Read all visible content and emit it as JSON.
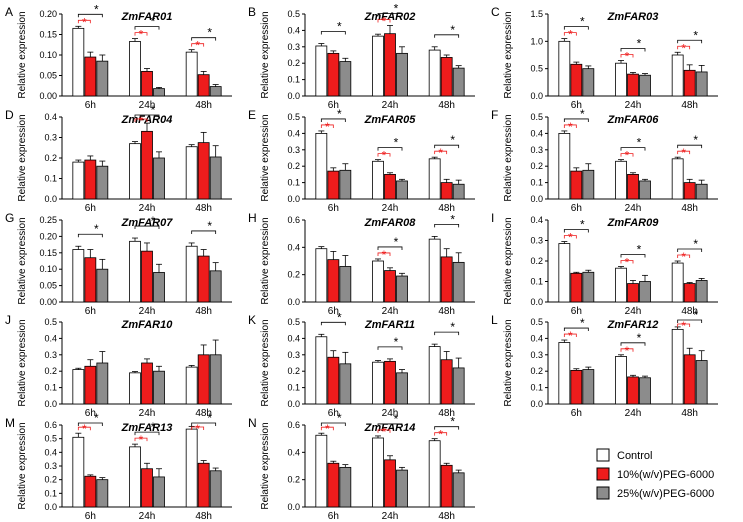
{
  "legend": {
    "items": [
      {
        "label": "Control",
        "color": "#ffffff"
      },
      {
        "label": "10%(w/v)PEG-6000",
        "color": "#ee1c1c"
      },
      {
        "label": "25%(w/v)PEG-6000",
        "color": "#8c8c8c"
      }
    ]
  },
  "chart_data": [
    {
      "type": "bar",
      "panel": "A",
      "title": "ZmFAR01",
      "ylabel": "Relative expression",
      "categories": [
        "6h",
        "24h",
        "48h"
      ],
      "ylim": [
        0,
        0.2
      ],
      "yticks": [
        "0.00",
        "0.05",
        "0.10",
        "0.15",
        "0.20"
      ],
      "series": [
        {
          "name": "Control",
          "values": [
            0.165,
            0.133,
            0.107
          ]
        },
        {
          "name": "10%(w/v)PEG-6000",
          "values": [
            0.095,
            0.06,
            0.052
          ]
        },
        {
          "name": "25%(w/v)PEG-6000",
          "values": [
            0.085,
            0.018,
            0.023
          ]
        }
      ],
      "errors": [
        [
          0.005,
          0.007,
          0.006
        ],
        [
          0.012,
          0.007,
          0.008
        ],
        [
          0.015,
          0.003,
          0.005
        ]
      ],
      "sig": [
        [
          "red",
          "black"
        ],
        [
          "red",
          "black"
        ],
        [
          "red",
          "black"
        ]
      ]
    },
    {
      "type": "bar",
      "panel": "B",
      "title": "ZmFAR02",
      "ylabel": "Relative expression",
      "categories": [
        "6h",
        "24h",
        "48h"
      ],
      "ylim": [
        0,
        0.5
      ],
      "yticks": [
        "0.0",
        "0.1",
        "0.2",
        "0.3",
        "0.4",
        "0.5"
      ],
      "series": [
        {
          "name": "Control",
          "values": [
            0.305,
            0.365,
            0.28
          ]
        },
        {
          "name": "10%(w/v)PEG-6000",
          "values": [
            0.26,
            0.38,
            0.235
          ]
        },
        {
          "name": "25%(w/v)PEG-6000",
          "values": [
            0.21,
            0.26,
            0.17
          ]
        }
      ],
      "errors": [
        [
          0.015,
          0.012,
          0.02
        ],
        [
          0.015,
          0.05,
          0.015
        ],
        [
          0.02,
          0.04,
          0.015
        ]
      ],
      "sig": [
        [
          null,
          "black"
        ],
        [
          "red",
          "black"
        ],
        [
          null,
          "black"
        ]
      ]
    },
    {
      "type": "bar",
      "panel": "C",
      "title": "ZmFAR03",
      "ylabel": "Relative expression",
      "categories": [
        "6h",
        "24h",
        "48h"
      ],
      "ylim": [
        0,
        1.5
      ],
      "yticks": [
        "0.0",
        "0.5",
        "1.0",
        "1.5"
      ],
      "series": [
        {
          "name": "Control",
          "values": [
            1.0,
            0.6,
            0.75
          ]
        },
        {
          "name": "10%(w/v)PEG-6000",
          "values": [
            0.58,
            0.4,
            0.47
          ]
        },
        {
          "name": "25%(w/v)PEG-6000",
          "values": [
            0.5,
            0.38,
            0.44
          ]
        }
      ],
      "errors": [
        [
          0.05,
          0.05,
          0.05
        ],
        [
          0.04,
          0.03,
          0.1
        ],
        [
          0.05,
          0.03,
          0.12
        ]
      ],
      "sig": [
        [
          "red",
          "black"
        ],
        [
          "red",
          "black"
        ],
        [
          "red",
          "black"
        ]
      ]
    },
    {
      "type": "bar",
      "panel": "D",
      "title": "ZmFAR04",
      "ylabel": "Relative expression",
      "categories": [
        "6h",
        "24h",
        "48h"
      ],
      "ylim": [
        0,
        0.4
      ],
      "yticks": [
        "0.0",
        "0.1",
        "0.2",
        "0.3",
        "0.4"
      ],
      "series": [
        {
          "name": "Control",
          "values": [
            0.18,
            0.27,
            0.255
          ]
        },
        {
          "name": "10%(w/v)PEG-6000",
          "values": [
            0.19,
            0.33,
            0.275
          ]
        },
        {
          "name": "25%(w/v)PEG-6000",
          "values": [
            0.16,
            0.2,
            0.205
          ]
        }
      ],
      "errors": [
        [
          0.01,
          0.01,
          0.01
        ],
        [
          0.02,
          0.04,
          0.05
        ],
        [
          0.025,
          0.03,
          0.055
        ]
      ],
      "sig": [
        [
          null,
          null
        ],
        [
          "red",
          "black"
        ],
        [
          null,
          null
        ]
      ]
    },
    {
      "type": "bar",
      "panel": "E",
      "title": "ZmFAR05",
      "ylabel": "Relative expression",
      "categories": [
        "6h",
        "24h",
        "48h"
      ],
      "ylim": [
        0,
        0.5
      ],
      "yticks": [
        "0.0",
        "0.1",
        "0.2",
        "0.3",
        "0.4",
        "0.5"
      ],
      "series": [
        {
          "name": "Control",
          "values": [
            0.4,
            0.23,
            0.245
          ]
        },
        {
          "name": "10%(w/v)PEG-6000",
          "values": [
            0.17,
            0.15,
            0.1
          ]
        },
        {
          "name": "25%(w/v)PEG-6000",
          "values": [
            0.175,
            0.11,
            0.09
          ]
        }
      ],
      "errors": [
        [
          0.015,
          0.01,
          0.01
        ],
        [
          0.02,
          0.01,
          0.02
        ],
        [
          0.04,
          0.01,
          0.025
        ]
      ],
      "sig": [
        [
          "red",
          "black"
        ],
        [
          "red",
          "black"
        ],
        [
          "red",
          "black"
        ]
      ]
    },
    {
      "type": "bar",
      "panel": "F",
      "title": "ZmFAR06",
      "ylabel": "Relative expression",
      "categories": [
        "6h",
        "24h",
        "48h"
      ],
      "ylim": [
        0,
        0.5
      ],
      "yticks": [
        "0.0",
        "0.1",
        "0.2",
        "0.3",
        "0.4",
        "0.5"
      ],
      "series": [
        {
          "name": "Control",
          "values": [
            0.4,
            0.23,
            0.245
          ]
        },
        {
          "name": "10%(w/v)PEG-6000",
          "values": [
            0.17,
            0.15,
            0.1
          ]
        },
        {
          "name": "25%(w/v)PEG-6000",
          "values": [
            0.175,
            0.11,
            0.09
          ]
        }
      ],
      "errors": [
        [
          0.015,
          0.01,
          0.01
        ],
        [
          0.02,
          0.01,
          0.02
        ],
        [
          0.04,
          0.01,
          0.025
        ]
      ],
      "sig": [
        [
          "red",
          "black"
        ],
        [
          "red",
          "black"
        ],
        [
          "red",
          "black"
        ]
      ]
    },
    {
      "type": "bar",
      "panel": "G",
      "title": "ZmFAR07",
      "ylabel": "Relative expression",
      "categories": [
        "6h",
        "24h",
        "48h"
      ],
      "ylim": [
        0,
        0.25
      ],
      "yticks": [
        "0.00",
        "0.05",
        "0.10",
        "0.15",
        "0.20",
        "0.25"
      ],
      "series": [
        {
          "name": "Control",
          "values": [
            0.16,
            0.185,
            0.17
          ]
        },
        {
          "name": "10%(w/v)PEG-6000",
          "values": [
            0.135,
            0.155,
            0.14
          ]
        },
        {
          "name": "25%(w/v)PEG-6000",
          "values": [
            0.1,
            0.09,
            0.095
          ]
        }
      ],
      "errors": [
        [
          0.01,
          0.01,
          0.01
        ],
        [
          0.025,
          0.025,
          0.02
        ],
        [
          0.03,
          0.025,
          0.025
        ]
      ],
      "sig": [
        [
          null,
          "black"
        ],
        [
          null,
          "black"
        ],
        [
          null,
          "black"
        ]
      ]
    },
    {
      "type": "bar",
      "panel": "H",
      "title": "ZmFAR08",
      "ylabel": "Relative expression",
      "categories": [
        "6h",
        "24h",
        "48h"
      ],
      "ylim": [
        0,
        0.6
      ],
      "yticks": [
        "0.0",
        "0.2",
        "0.4",
        "0.6"
      ],
      "series": [
        {
          "name": "Control",
          "values": [
            0.39,
            0.3,
            0.46
          ]
        },
        {
          "name": "10%(w/v)PEG-6000",
          "values": [
            0.31,
            0.23,
            0.33
          ]
        },
        {
          "name": "25%(w/v)PEG-6000",
          "values": [
            0.26,
            0.19,
            0.29
          ]
        }
      ],
      "errors": [
        [
          0.015,
          0.015,
          0.02
        ],
        [
          0.06,
          0.02,
          0.06
        ],
        [
          0.08,
          0.02,
          0.07
        ]
      ],
      "sig": [
        [
          null,
          null
        ],
        [
          "red",
          "black"
        ],
        [
          null,
          "black"
        ]
      ]
    },
    {
      "type": "bar",
      "panel": "I",
      "title": "ZmFAR09",
      "ylabel": "Relative expression",
      "categories": [
        "6h",
        "24h",
        "48h"
      ],
      "ylim": [
        0,
        0.4
      ],
      "yticks": [
        "0.0",
        "0.1",
        "0.2",
        "0.3",
        "0.4"
      ],
      "series": [
        {
          "name": "Control",
          "values": [
            0.285,
            0.165,
            0.19
          ]
        },
        {
          "name": "10%(w/v)PEG-6000",
          "values": [
            0.14,
            0.09,
            0.09
          ]
        },
        {
          "name": "25%(w/v)PEG-6000",
          "values": [
            0.145,
            0.1,
            0.105
          ]
        }
      ],
      "errors": [
        [
          0.01,
          0.008,
          0.01
        ],
        [
          0.005,
          0.015,
          0.005
        ],
        [
          0.01,
          0.03,
          0.01
        ]
      ],
      "sig": [
        [
          "red",
          "black"
        ],
        [
          "red",
          "black"
        ],
        [
          "red",
          "black"
        ]
      ]
    },
    {
      "type": "bar",
      "panel": "J",
      "title": "ZmFAR10",
      "ylabel": "Relative expression",
      "categories": [
        "6h",
        "24h",
        "48h"
      ],
      "ylim": [
        0,
        0.5
      ],
      "yticks": [
        "0.0",
        "0.1",
        "0.2",
        "0.3",
        "0.4",
        "0.5"
      ],
      "series": [
        {
          "name": "Control",
          "values": [
            0.21,
            0.19,
            0.225
          ]
        },
        {
          "name": "10%(w/v)PEG-6000",
          "values": [
            0.23,
            0.25,
            0.3
          ]
        },
        {
          "name": "25%(w/v)PEG-6000",
          "values": [
            0.25,
            0.2,
            0.3
          ]
        }
      ],
      "errors": [
        [
          0.008,
          0.008,
          0.01
        ],
        [
          0.04,
          0.025,
          0.06
        ],
        [
          0.07,
          0.03,
          0.09
        ]
      ],
      "sig": [
        [
          null,
          null
        ],
        [
          null,
          null
        ],
        [
          null,
          null
        ]
      ]
    },
    {
      "type": "bar",
      "panel": "K",
      "title": "ZmFAR11",
      "ylabel": "Relative expression",
      "categories": [
        "6h",
        "24h",
        "48h"
      ],
      "ylim": [
        0,
        0.5
      ],
      "yticks": [
        "0.0",
        "0.1",
        "0.2",
        "0.3",
        "0.4",
        "0.5"
      ],
      "series": [
        {
          "name": "Control",
          "values": [
            0.41,
            0.255,
            0.35
          ]
        },
        {
          "name": "10%(w/v)PEG-6000",
          "values": [
            0.285,
            0.26,
            0.27
          ]
        },
        {
          "name": "25%(w/v)PEG-6000",
          "values": [
            0.245,
            0.19,
            0.22
          ]
        }
      ],
      "errors": [
        [
          0.015,
          0.01,
          0.015
        ],
        [
          0.04,
          0.015,
          0.05
        ],
        [
          0.07,
          0.02,
          0.06
        ]
      ],
      "sig": [
        [
          null,
          "black"
        ],
        [
          null,
          "black"
        ],
        [
          null,
          "black"
        ]
      ]
    },
    {
      "type": "bar",
      "panel": "L",
      "title": "ZmFAR12",
      "ylabel": "Relative expression",
      "categories": [
        "6h",
        "24h",
        "48h"
      ],
      "ylim": [
        0,
        0.5
      ],
      "yticks": [
        "0.0",
        "0.1",
        "0.2",
        "0.3",
        "0.4",
        "0.5"
      ],
      "series": [
        {
          "name": "Control",
          "values": [
            0.375,
            0.29,
            0.455
          ]
        },
        {
          "name": "10%(w/v)PEG-6000",
          "values": [
            0.205,
            0.165,
            0.3
          ]
        },
        {
          "name": "25%(w/v)PEG-6000",
          "values": [
            0.21,
            0.16,
            0.265
          ]
        }
      ],
      "errors": [
        [
          0.015,
          0.01,
          0.015
        ],
        [
          0.01,
          0.01,
          0.04
        ],
        [
          0.015,
          0.01,
          0.06
        ]
      ],
      "sig": [
        [
          "red",
          "black"
        ],
        [
          "red",
          "black"
        ],
        [
          "red",
          "black"
        ]
      ]
    },
    {
      "type": "bar",
      "panel": "M",
      "title": "ZmFAR13",
      "ylabel": "Relative expression",
      "categories": [
        "6h",
        "24h",
        "48h"
      ],
      "ylim": [
        0,
        0.6
      ],
      "yticks": [
        "0.0",
        "0.1",
        "0.2",
        "0.3",
        "0.4",
        "0.5",
        "0.6"
      ],
      "series": [
        {
          "name": "Control",
          "values": [
            0.51,
            0.44,
            0.57
          ]
        },
        {
          "name": "10%(w/v)PEG-6000",
          "values": [
            0.225,
            0.28,
            0.32
          ]
        },
        {
          "name": "25%(w/v)PEG-6000",
          "values": [
            0.2,
            0.22,
            0.265
          ]
        }
      ],
      "errors": [
        [
          0.03,
          0.02,
          0.02
        ],
        [
          0.01,
          0.04,
          0.02
        ],
        [
          0.015,
          0.06,
          0.02
        ]
      ],
      "sig": [
        [
          "red",
          "black"
        ],
        [
          "red",
          "black"
        ],
        [
          "red",
          "black"
        ]
      ]
    },
    {
      "type": "bar",
      "panel": "N",
      "title": "ZmFAR14",
      "ylabel": "Relative expression",
      "categories": [
        "6h",
        "24h",
        "48h"
      ],
      "ylim": [
        0,
        0.6
      ],
      "yticks": [
        "0.0",
        "0.2",
        "0.4",
        "0.6"
      ],
      "series": [
        {
          "name": "Control",
          "values": [
            0.525,
            0.505,
            0.485
          ]
        },
        {
          "name": "10%(w/v)PEG-6000",
          "values": [
            0.32,
            0.345,
            0.305
          ]
        },
        {
          "name": "25%(w/v)PEG-6000",
          "values": [
            0.29,
            0.27,
            0.25
          ]
        }
      ],
      "errors": [
        [
          0.015,
          0.015,
          0.015
        ],
        [
          0.015,
          0.03,
          0.015
        ],
        [
          0.02,
          0.02,
          0.02
        ]
      ],
      "sig": [
        [
          "red",
          "black"
        ],
        [
          "red",
          "black"
        ],
        [
          "red",
          "black"
        ]
      ]
    }
  ]
}
